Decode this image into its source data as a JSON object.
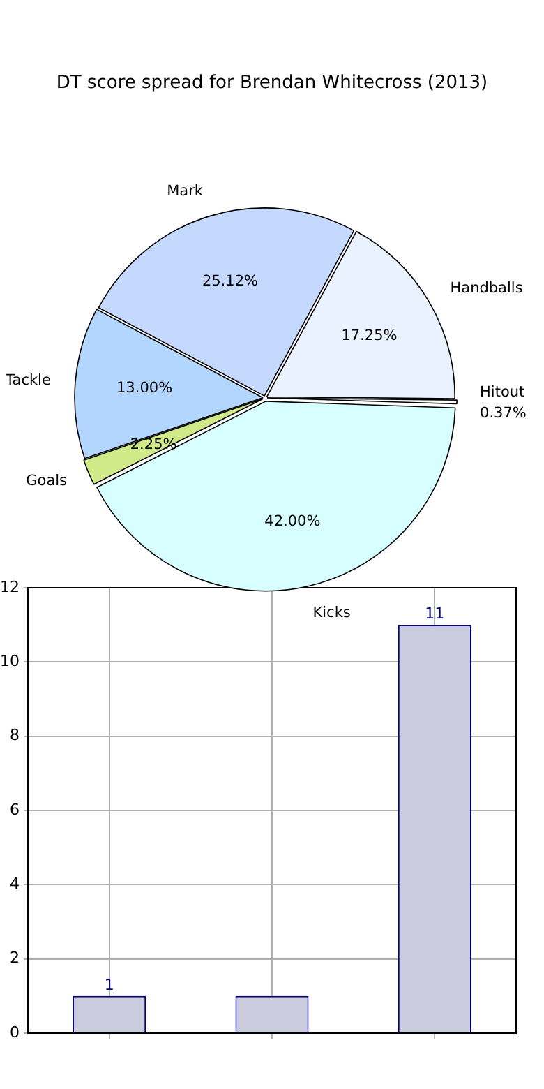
{
  "chart_data": [
    {
      "type": "pie",
      "title": "DT score spread for Brendan Whitecross (2013)",
      "categories": [
        "Mark",
        "Handballs",
        "Hitout",
        "Kicks",
        "Goals",
        "Tackle"
      ],
      "values": [
        25.12,
        17.25,
        0.37,
        42.0,
        2.25,
        13.0
      ],
      "colors": [
        "#c5d9ff",
        "#eaf1ff",
        "#ffffff",
        "#d8ffff",
        "#d0ea8a",
        "#b3d6ff"
      ],
      "value_labels": [
        "25.12%",
        "17.25%",
        "0.37%",
        "42.00%",
        "2.25%",
        "13.00%"
      ],
      "legend": false
    },
    {
      "type": "bar",
      "categories": [
        null,
        null,
        null
      ],
      "values": [
        1,
        1,
        11
      ],
      "color": "#ccccdf",
      "value_labels": [
        "1",
        null,
        "11"
      ],
      "ylim": [
        0,
        12
      ],
      "yticks": [
        0,
        2,
        4,
        6,
        8,
        10,
        12
      ],
      "grid": true,
      "tick_labels": "y"
    }
  ]
}
